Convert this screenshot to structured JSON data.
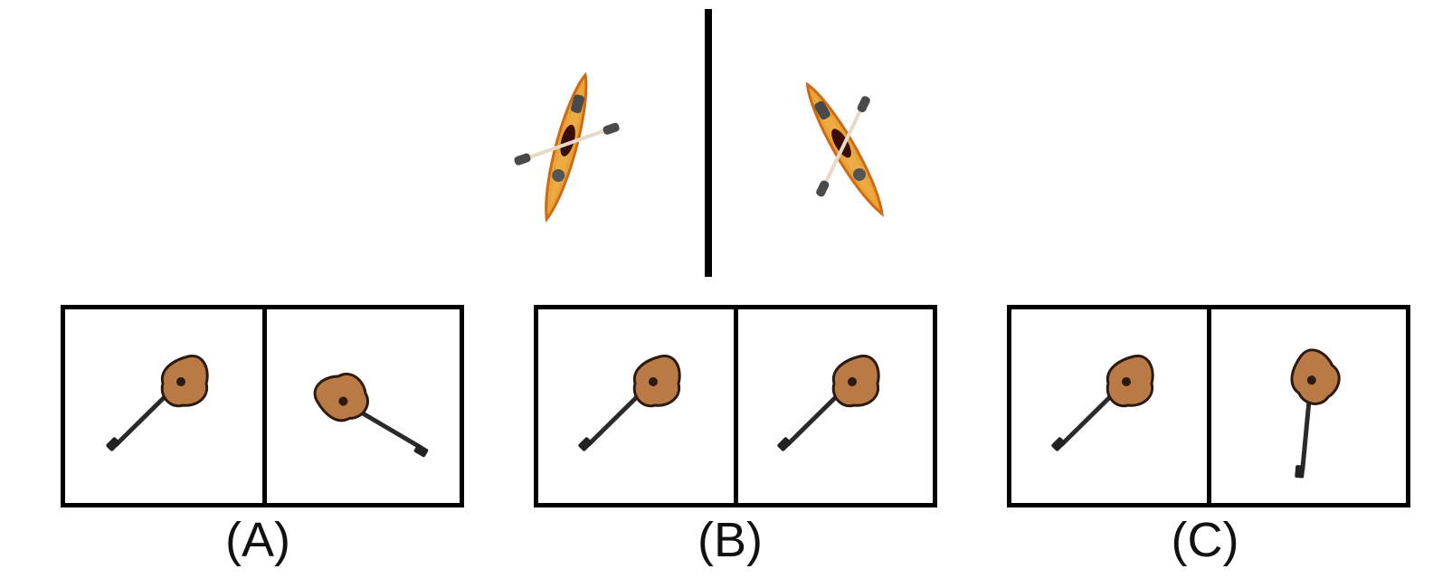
{
  "options": [
    {
      "label": "(A)"
    },
    {
      "label": "(B)"
    },
    {
      "label": "(C)"
    }
  ],
  "icons": {
    "reference_left": "kayak-icon",
    "reference_right": "kayak-icon",
    "option_object": "guitar-icon"
  },
  "colors": {
    "kayak_body": "#e8a33a",
    "kayak_edge": "#d06a12",
    "paddle": "#4a4a4a",
    "guitar_body": "#b97a45",
    "guitar_neck": "#2a2a2a"
  }
}
